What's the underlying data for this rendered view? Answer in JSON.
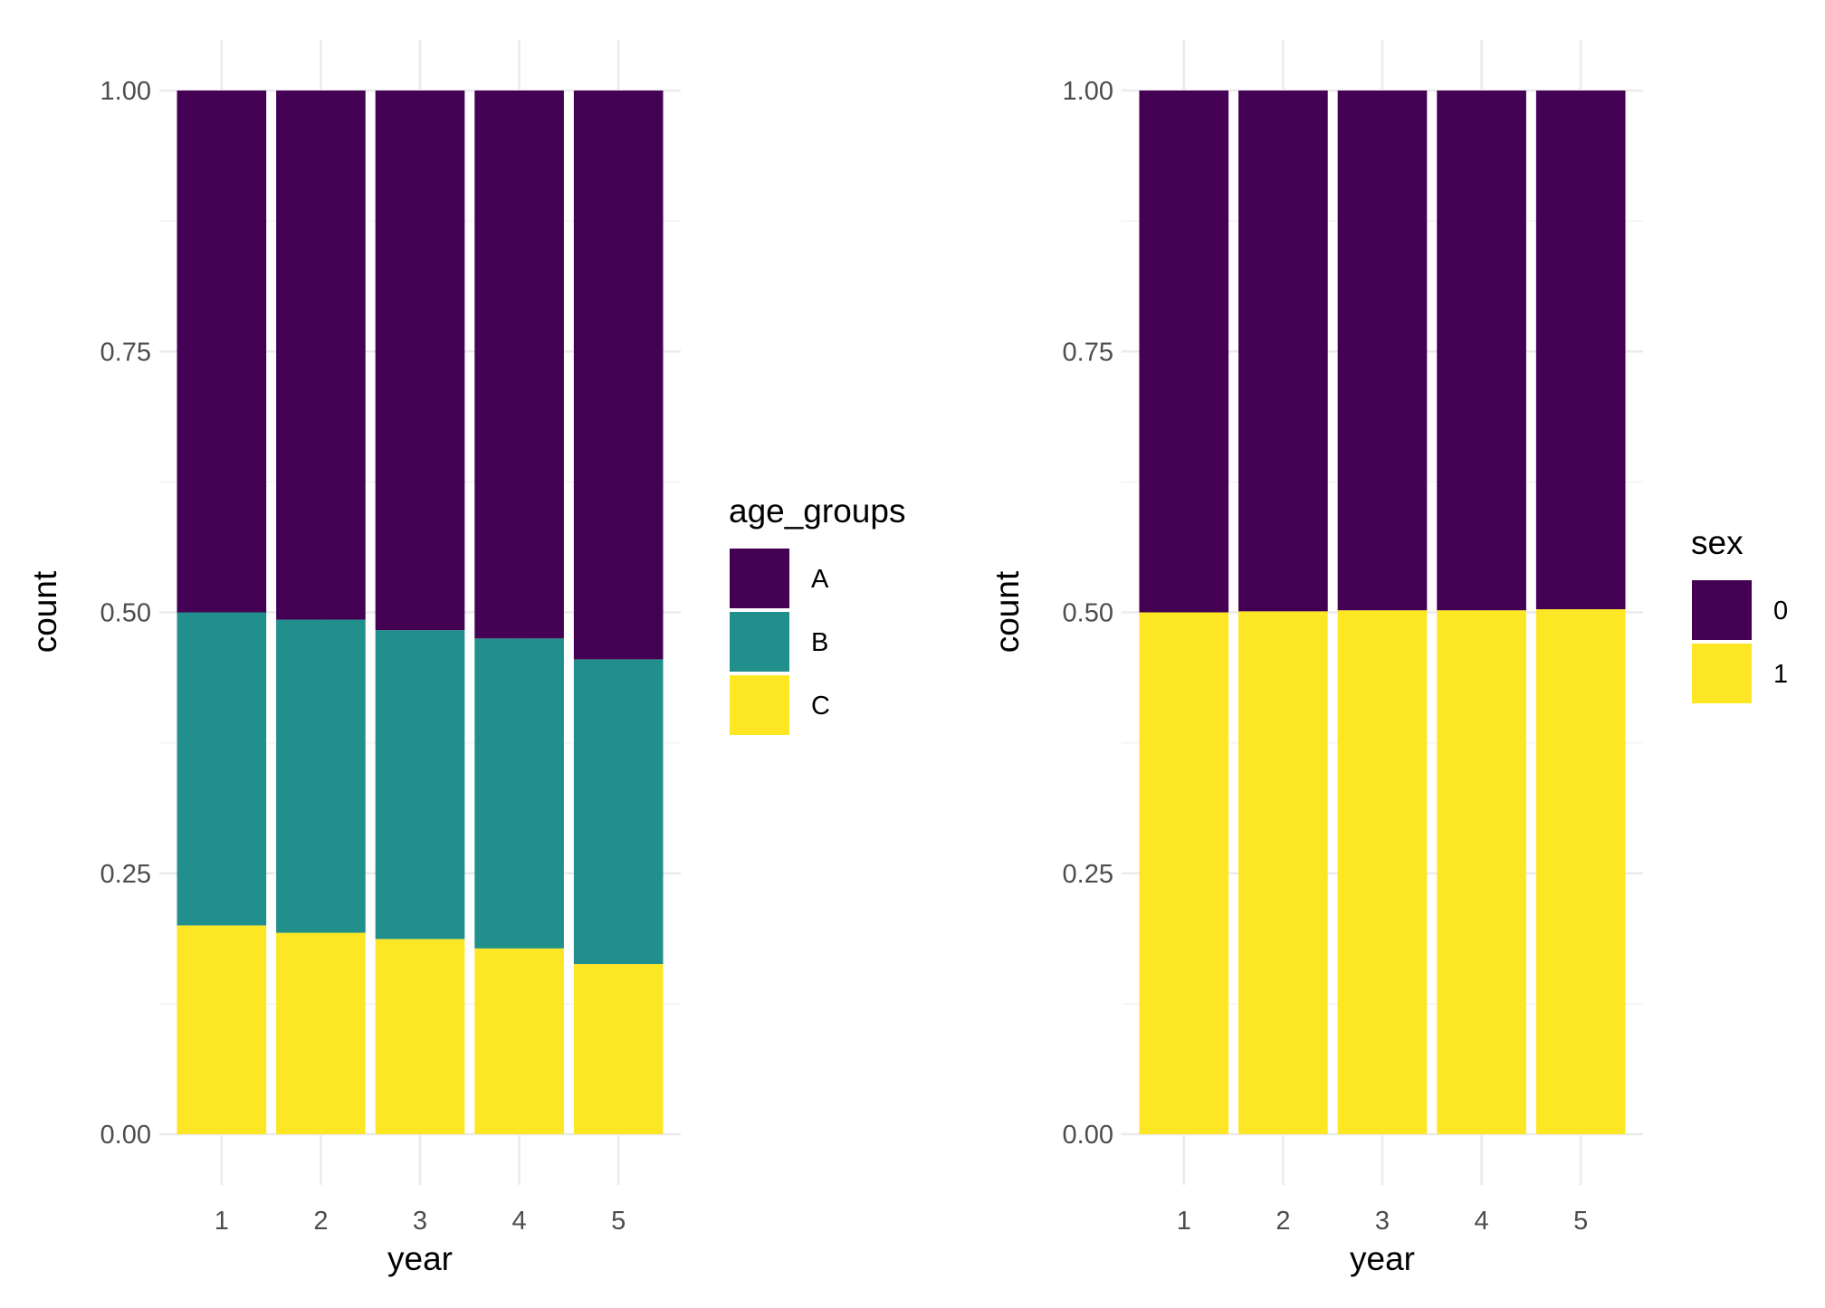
{
  "colors": {
    "A": "#440154",
    "B": "#21908C",
    "C": "#FDE725",
    "sex_0": "#440154",
    "sex_1": "#FDE725",
    "grid_major": "#ebebeb",
    "grid_minor": "#f3f3f3",
    "tick_text": "#4d4d4d"
  },
  "chart_data": [
    {
      "type": "bar",
      "stacked": "fill",
      "xlabel": "year",
      "ylabel": "count",
      "categories": [
        "1",
        "2",
        "3",
        "4",
        "5"
      ],
      "ylim": [
        0,
        1
      ],
      "y_ticks": [
        "0.00",
        "0.25",
        "0.50",
        "0.75",
        "1.00"
      ],
      "grid": true,
      "legend": {
        "title": "age_groups",
        "position": "right",
        "entries": [
          "A",
          "B",
          "C"
        ]
      },
      "series": [
        {
          "name": "C",
          "color": "#FDE725",
          "values": [
            0.2,
            0.193,
            0.187,
            0.178,
            0.163
          ]
        },
        {
          "name": "B",
          "color": "#21908C",
          "values": [
            0.3,
            0.3,
            0.296,
            0.297,
            0.292
          ]
        },
        {
          "name": "A",
          "color": "#440154",
          "values": [
            0.5,
            0.507,
            0.517,
            0.525,
            0.545
          ]
        }
      ]
    },
    {
      "type": "bar",
      "stacked": "fill",
      "xlabel": "year",
      "ylabel": "count",
      "categories": [
        "1",
        "2",
        "3",
        "4",
        "5"
      ],
      "ylim": [
        0,
        1
      ],
      "y_ticks": [
        "0.00",
        "0.25",
        "0.50",
        "0.75",
        "1.00"
      ],
      "grid": true,
      "legend": {
        "title": "sex",
        "position": "right",
        "entries": [
          "0",
          "1"
        ]
      },
      "series": [
        {
          "name": "1",
          "color": "#FDE725",
          "values": [
            0.5,
            0.501,
            0.502,
            0.502,
            0.503
          ]
        },
        {
          "name": "0",
          "color": "#440154",
          "values": [
            0.5,
            0.499,
            0.498,
            0.498,
            0.497
          ]
        }
      ]
    }
  ]
}
